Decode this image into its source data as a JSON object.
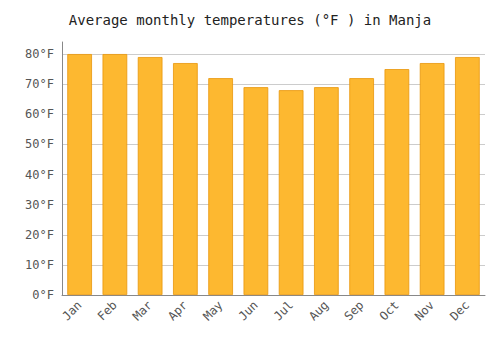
{
  "chart_data": {
    "type": "bar",
    "title": "Average monthly temperatures (°F ) in Manja",
    "categories": [
      "Jan",
      "Feb",
      "Mar",
      "Apr",
      "May",
      "Jun",
      "Jul",
      "Aug",
      "Sep",
      "Oct",
      "Nov",
      "Dec"
    ],
    "values": [
      80,
      80,
      79,
      77,
      72,
      69,
      68,
      69,
      72,
      75,
      77,
      79
    ],
    "color": "#FDB830",
    "ylim": [
      0,
      84
    ],
    "yticks": [
      {
        "value": 0,
        "label": "0°F"
      },
      {
        "value": 10,
        "label": "10°F"
      },
      {
        "value": 20,
        "label": "20°F"
      },
      {
        "value": 30,
        "label": "30°F"
      },
      {
        "value": 40,
        "label": "40°F"
      },
      {
        "value": 50,
        "label": "50°F"
      },
      {
        "value": 60,
        "label": "60°F"
      },
      {
        "value": 70,
        "label": "70°F"
      },
      {
        "value": 80,
        "label": "80°F"
      }
    ],
    "grid": true
  }
}
